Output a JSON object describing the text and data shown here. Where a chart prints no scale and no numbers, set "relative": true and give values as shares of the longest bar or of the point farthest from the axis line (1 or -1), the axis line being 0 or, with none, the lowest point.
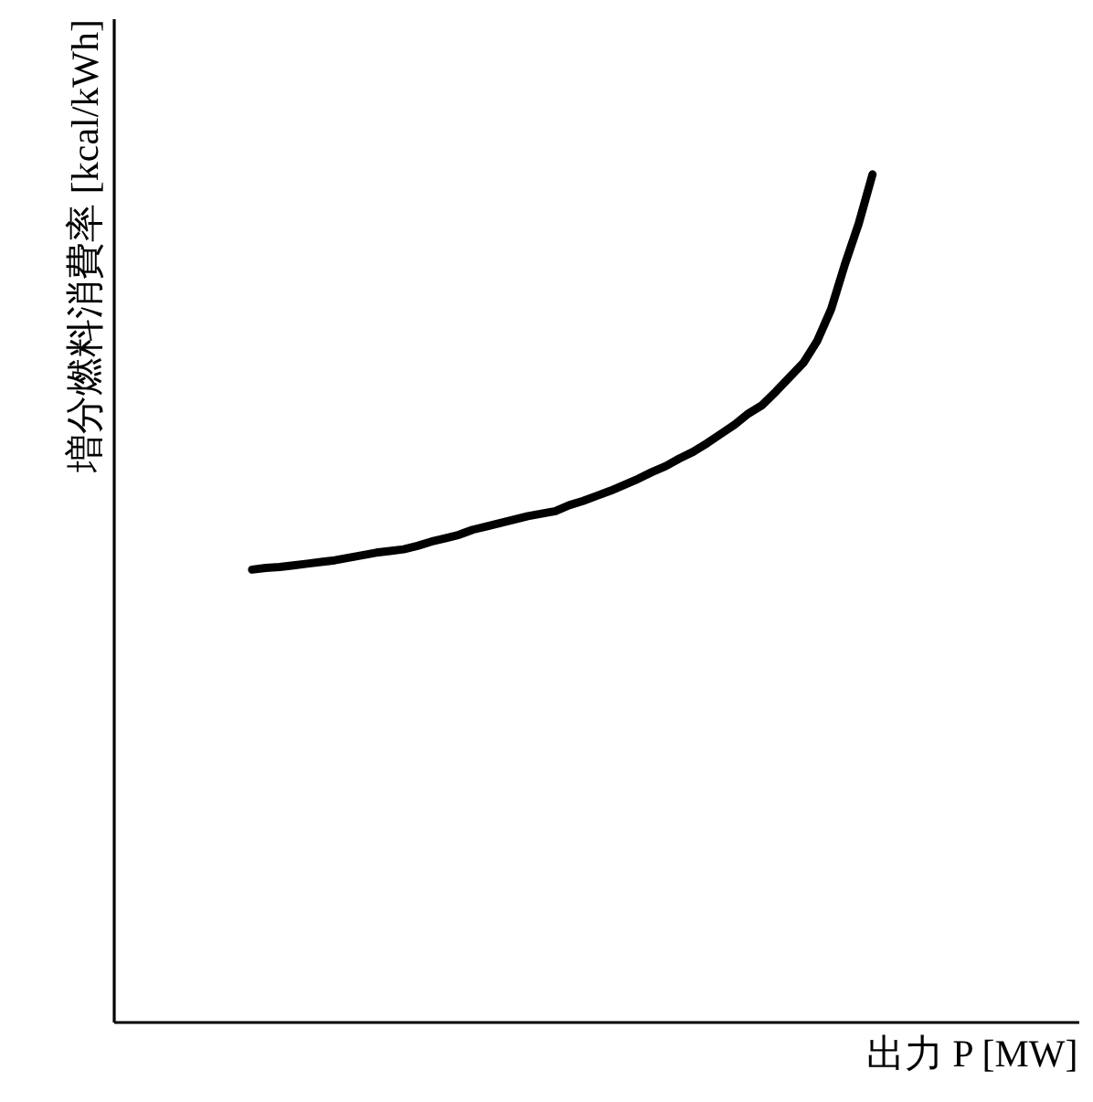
{
  "chart_data": {
    "type": "line",
    "xlabel": "出力 P [MW]",
    "ylabel": "増分燃料消費率 [kcal/kWh]",
    "relative": true,
    "categories": [
      null,
      null,
      null,
      null,
      null,
      null,
      null,
      null,
      null,
      null,
      null,
      null,
      null,
      null,
      null,
      null,
      null,
      null,
      null,
      null,
      null,
      null,
      null,
      null,
      null,
      null,
      null,
      null,
      null,
      null,
      null,
      null,
      null,
      null,
      null,
      null,
      null,
      null,
      null,
      null,
      null,
      null,
      null,
      null,
      null,
      null,
      null,
      null,
      null,
      null,
      null,
      null,
      null,
      null,
      null,
      null,
      null,
      null,
      null,
      null,
      null,
      null,
      null,
      null,
      null,
      null,
      null,
      null,
      null,
      null,
      null
    ],
    "series": [
      {
        "color": "#000000",
        "values": [
          null,
          null,
          null,
          null,
          null,
          null,
          null,
          null,
          null,
          null,
          0.534,
          0.536,
          0.537,
          0.539,
          0.541,
          0.543,
          0.545,
          0.548,
          0.551,
          0.554,
          0.556,
          0.558,
          0.562,
          0.567,
          0.571,
          0.575,
          0.581,
          0.585,
          0.589,
          0.593,
          0.597,
          0.6,
          0.603,
          0.61,
          0.615,
          0.621,
          0.627,
          0.634,
          0.641,
          0.649,
          0.656,
          0.665,
          0.673,
          0.683,
          0.694,
          0.705,
          0.718,
          0.728,
          0.744,
          0.761,
          0.778,
          0.804,
          0.841,
          0.894,
          0.942,
          1.0,
          null,
          null,
          null,
          null,
          null,
          null,
          null,
          null,
          null,
          null,
          null,
          null,
          null,
          null,
          null
        ]
      }
    ],
    "line_style": "solid"
  }
}
